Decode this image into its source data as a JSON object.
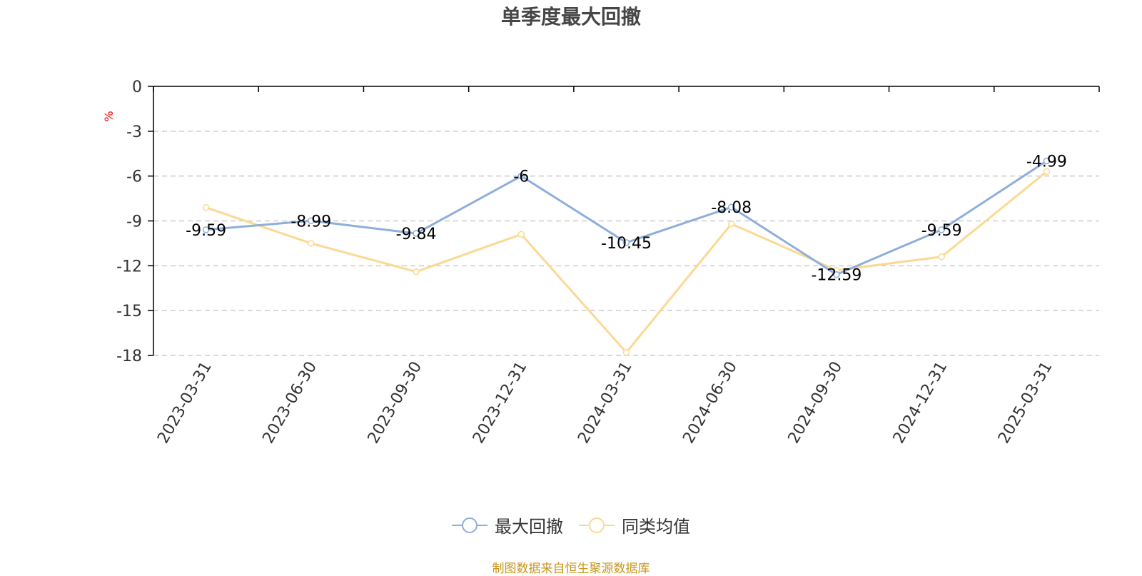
{
  "colors": {
    "series1": "#8eaedb",
    "series2": "#fad993",
    "unit": "#ff0000",
    "grid": "#cccccc",
    "axis": "#000000",
    "source": "#c8961e"
  },
  "chart_data": {
    "type": "line",
    "title": "单季度最大回撤",
    "ylabel": "%",
    "xlabel": "",
    "ylim": [
      -18,
      0
    ],
    "yticks": [
      0,
      -3,
      -6,
      -9,
      -12,
      -15,
      -18
    ],
    "grid": true,
    "legend_position": "bottom-center",
    "categories": [
      "2023-03-31",
      "2023-06-30",
      "2023-09-30",
      "2023-12-31",
      "2024-03-31",
      "2024-06-30",
      "2024-09-30",
      "2024-12-31",
      "2025-03-31"
    ],
    "series": [
      {
        "name": "最大回撤",
        "values": [
          -9.59,
          -8.99,
          -9.84,
          -6,
          -10.45,
          -8.08,
          -12.59,
          -9.59,
          -4.99
        ],
        "data_labels": [
          "-9.59",
          "-8.99",
          "-9.84",
          "-6",
          "-10.45",
          "-8.08",
          "-12.59",
          "-9.59",
          "-4.99"
        ]
      },
      {
        "name": "同类均值",
        "values": [
          -8.1,
          -10.5,
          -12.4,
          -9.9,
          -17.8,
          -9.2,
          -12.3,
          -11.4,
          -5.7
        ]
      }
    ]
  },
  "source_note": "制图数据来自恒生聚源数据库"
}
